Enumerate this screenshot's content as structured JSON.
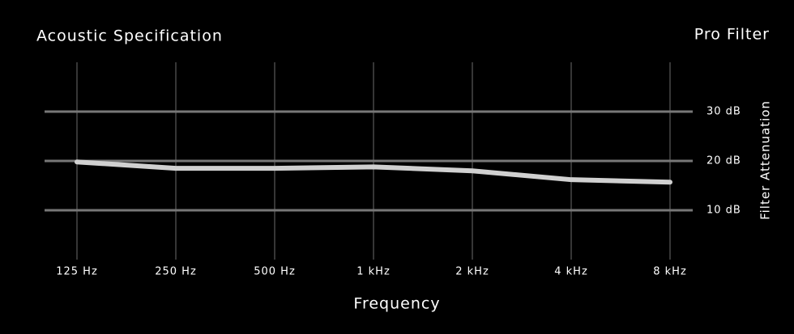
{
  "chart_data": {
    "type": "line",
    "title": "Acoustic Specification",
    "subtitle": "Pro Filter",
    "x_label": "Frequency",
    "y_label": "Filter Attenuation",
    "categories": [
      "125 Hz",
      "250 Hz",
      "500 Hz",
      "1 kHz",
      "2 kHz",
      "4 kHz",
      "8 kHz"
    ],
    "values": [
      19.8,
      18.5,
      18.5,
      18.8,
      18,
      16.2,
      15.7
    ],
    "color": "#d0d0d0",
    "ylim": [
      0,
      40
    ],
    "yticks": [
      {
        "value": 10,
        "label": "10 dB"
      },
      {
        "value": 20,
        "label": "20 dB"
      },
      {
        "value": 30,
        "label": "30 dB"
      }
    ],
    "grid": true
  }
}
